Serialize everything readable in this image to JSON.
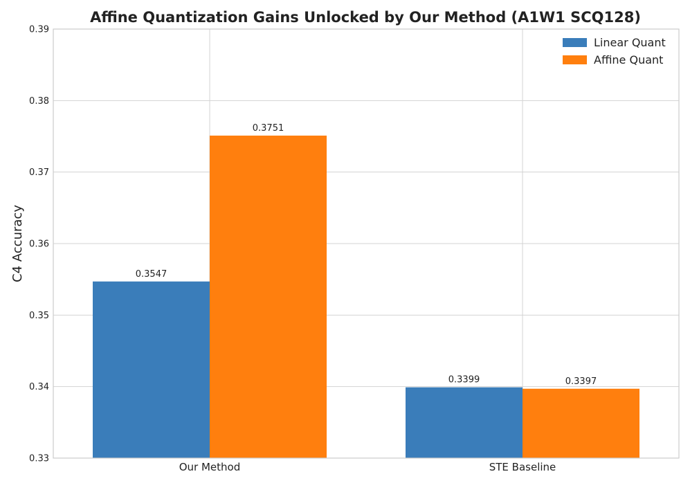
{
  "chart_data": {
    "type": "bar",
    "title": "Affine Quantization Gains Unlocked by Our Method (A1W1 SCQ128)",
    "xlabel": "",
    "ylabel": "C4 Accuracy",
    "categories": [
      "Our Method",
      "STE Baseline"
    ],
    "series": [
      {
        "name": "Linear Quant",
        "color": "#3a7dba",
        "values": [
          0.3547,
          0.3399
        ],
        "labels": [
          "0.3547",
          "0.3399"
        ]
      },
      {
        "name": "Affine Quant",
        "color": "#ff7f0e",
        "values": [
          0.3751,
          0.3397
        ],
        "labels": [
          "0.3751",
          "0.3397"
        ]
      }
    ],
    "ylim": [
      0.33,
      0.39
    ],
    "yticks": [
      0.33,
      0.34,
      0.35,
      0.36,
      0.37,
      0.38,
      0.39
    ],
    "ytick_labels": [
      "0.33",
      "0.34",
      "0.35",
      "0.36",
      "0.37",
      "0.38",
      "0.39"
    ],
    "grid": true,
    "legend_position": "top-right"
  }
}
